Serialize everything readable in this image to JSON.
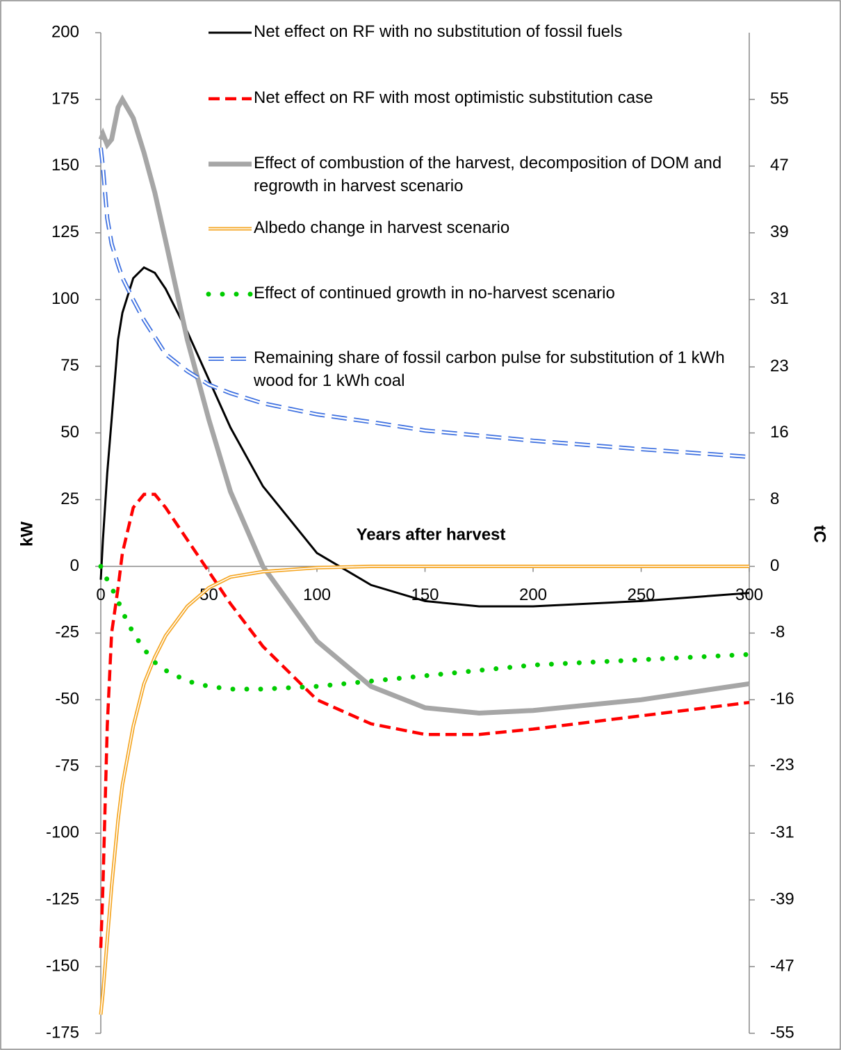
{
  "chart_data": {
    "type": "line",
    "x_label": "Years after harvest",
    "y_label": "kW",
    "y2_label": "tC",
    "xlim": [
      0,
      300
    ],
    "xticks": [
      0,
      50,
      100,
      150,
      200,
      250,
      300
    ],
    "ylim": [
      -175,
      200
    ],
    "yticks": [
      -175,
      -150,
      -125,
      -100,
      -75,
      -50,
      -25,
      0,
      25,
      50,
      75,
      100,
      125,
      150,
      175,
      200
    ],
    "y2lim": [
      -55,
      62.857
    ],
    "y2ticks": [
      -55,
      {
        "value": -47.143,
        "label": "-47"
      },
      {
        "value": -39.286,
        "label": "-39"
      },
      {
        "value": -31.429,
        "label": "-31"
      },
      {
        "value": -23.49,
        "label": "-23"
      },
      {
        "value": -15.714,
        "label": "-16"
      },
      {
        "value": -7.857,
        "label": "-8"
      },
      0,
      {
        "value": 7.857,
        "label": "8"
      },
      {
        "value": 15.714,
        "label": "16"
      },
      {
        "value": 23.49,
        "label": "23"
      },
      {
        "value": 31.429,
        "label": "31"
      },
      {
        "value": 39.286,
        "label": "39"
      },
      {
        "value": 47.143,
        "label": "47"
      },
      55
    ],
    "x": [
      0,
      1,
      3,
      5,
      8,
      10,
      15,
      20,
      25,
      30,
      40,
      50,
      60,
      75,
      100,
      125,
      150,
      175,
      200,
      250,
      300
    ],
    "series": [
      {
        "name": "Net effect on RF with no substitution of fossil fuels",
        "color": "#000000",
        "style": "solid",
        "values": [
          -5,
          10,
          35,
          55,
          85,
          95,
          108,
          112,
          110,
          104,
          88,
          70,
          52,
          30,
          5,
          -7,
          -13,
          -15,
          -15,
          -13,
          -10
        ]
      },
      {
        "name": "Net effect on RF with most optimistic substitution case",
        "color": "#ff0000",
        "style": "dashed",
        "values": [
          -143,
          -120,
          -60,
          -25,
          -8,
          5,
          22,
          27,
          27,
          22,
          10,
          -2,
          -14,
          -30,
          -50,
          -59,
          -63,
          -63,
          -61,
          -56,
          -51
        ]
      },
      {
        "name": "Effect of combustion of the harvest, decomposition of DOM and regrowth in harvest scenario",
        "color": "#a6a6a6",
        "style": "thick",
        "values": [
          160,
          162,
          158,
          160,
          172,
          175,
          168,
          155,
          140,
          122,
          85,
          55,
          28,
          0,
          -28,
          -45,
          -53,
          -55,
          -54,
          -50,
          -44
        ]
      },
      {
        "name": "Albedo change in harvest scenario",
        "color": "#f5a623",
        "style": "double",
        "values": [
          -168,
          -160,
          -140,
          -120,
          -95,
          -82,
          -60,
          -44,
          -34,
          -26,
          -15,
          -8,
          -4,
          -2,
          -0.5,
          0,
          0,
          0,
          0,
          0,
          0
        ]
      },
      {
        "name": "Effect of  continued growth in no-harvest scenario",
        "color": "#00cc00",
        "style": "dotted",
        "values": [
          0,
          -2,
          -5,
          -8,
          -13,
          -17,
          -25,
          -31,
          -36,
          -39,
          -43,
          -45,
          -46,
          -46,
          -45,
          -43,
          -41,
          -39,
          -37,
          -35,
          -33
        ]
      },
      {
        "name": "Remaining share of fossil carbon pulse for substitution of 1 kWh wood for 1 kWh coal",
        "color": "#3c6fe0",
        "style": "double-dashed",
        "axis": "y2",
        "values": [
          49.3,
          47,
          41,
          38,
          35.5,
          34,
          31.4,
          29,
          27,
          25,
          23,
          21.4,
          20.4,
          19.2,
          17.9,
          17,
          16,
          15.4,
          14.8,
          13.8,
          12.9
        ]
      }
    ]
  }
}
